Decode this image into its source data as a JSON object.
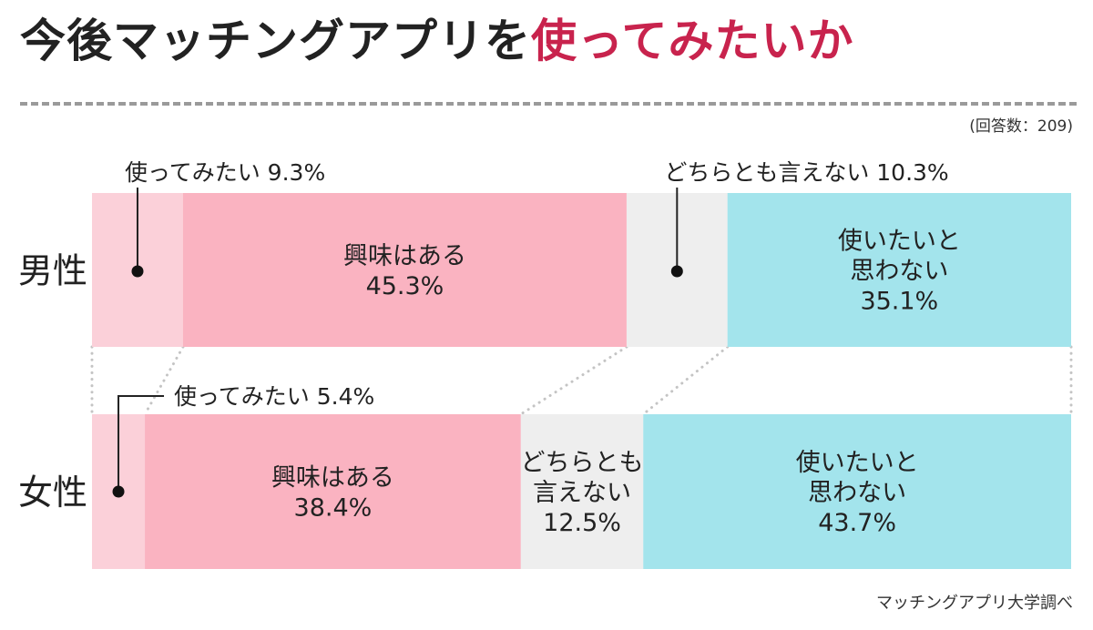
{
  "header": {
    "title_main": "今後マッチングアプリを",
    "title_accent": "使ってみたいか",
    "respondents": "(回答数：209)",
    "source": "マッチングアプリ大学調べ"
  },
  "colors": {
    "title_accent": "#c8234d",
    "want_to_use": "#fbd0d9",
    "interested": "#fab3c1",
    "neither": "#eeeeee",
    "dont_want": "#a3e4ec"
  },
  "chart_data": {
    "type": "bar",
    "stacked": true,
    "orientation": "horizontal",
    "percent_stacked": true,
    "categories": [
      "男性",
      "女性"
    ],
    "series": [
      {
        "key": "want",
        "name": "使ってみたい",
        "values": [
          9.3,
          5.4
        ],
        "color": "#fbd0d9"
      },
      {
        "key": "interested",
        "name": "興味はある",
        "values": [
          45.3,
          38.4
        ],
        "color": "#fab3c1"
      },
      {
        "key": "neither",
        "name": "どちらとも言えない",
        "values": [
          10.3,
          12.5
        ],
        "color": "#eeeeee"
      },
      {
        "key": "dont",
        "name": "使いたいと思わない",
        "values": [
          35.1,
          43.7
        ],
        "color": "#a3e4ec"
      }
    ],
    "labels": [
      {
        "series": "want",
        "row": 0,
        "lines": [
          "使ってみたい 9.3%"
        ],
        "callout": true
      },
      {
        "series": "interested",
        "row": 0,
        "lines": [
          "興味はある",
          "45.3%"
        ]
      },
      {
        "series": "neither",
        "row": 0,
        "lines": [
          "どちらとも言えない 10.3%"
        ],
        "callout": true
      },
      {
        "series": "dont",
        "row": 0,
        "lines": [
          "使いたいと",
          "思わない",
          "35.1%"
        ]
      },
      {
        "series": "want",
        "row": 1,
        "lines": [
          "使ってみたい 5.4%"
        ],
        "callout": true
      },
      {
        "series": "interested",
        "row": 1,
        "lines": [
          "興味はある",
          "38.4%"
        ]
      },
      {
        "series": "neither",
        "row": 1,
        "lines": [
          "どちらとも",
          "言えない",
          "12.5%"
        ]
      },
      {
        "series": "dont",
        "row": 1,
        "lines": [
          "使いたいと",
          "思わない",
          "43.7%"
        ]
      }
    ]
  }
}
